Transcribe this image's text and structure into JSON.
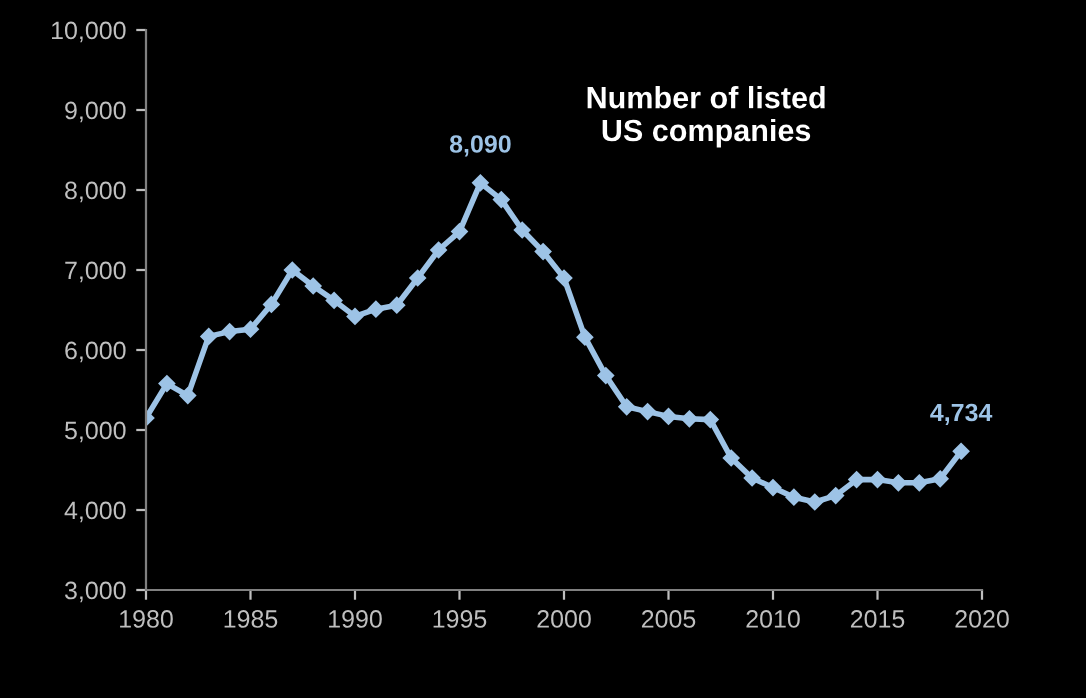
{
  "chart_data": {
    "type": "line",
    "title": "Number of listed\nUS companies",
    "x": [
      1980,
      1981,
      1982,
      1983,
      1984,
      1985,
      1986,
      1987,
      1988,
      1989,
      1990,
      1991,
      1992,
      1993,
      1994,
      1995,
      1996,
      1997,
      1998,
      1999,
      2000,
      2001,
      2002,
      2003,
      2004,
      2005,
      2006,
      2007,
      2008,
      2009,
      2010,
      2011,
      2012,
      2013,
      2014,
      2015,
      2016,
      2017,
      2018,
      2019
    ],
    "series": [
      {
        "color": "#9dc3e6",
        "values": [
          5150,
          5580,
          5430,
          6170,
          6230,
          6260,
          6570,
          7000,
          6800,
          6620,
          6420,
          6510,
          6560,
          6900,
          7250,
          7480,
          8090,
          7880,
          7500,
          7230,
          6900,
          6160,
          5680,
          5290,
          5230,
          5170,
          5140,
          5130,
          4650,
          4400,
          4280,
          4160,
          4100,
          4180,
          4380,
          4380,
          4340,
          4340,
          4390,
          4734
        ],
        "value_labels": [
          null,
          null,
          null,
          null,
          null,
          null,
          null,
          null,
          null,
          null,
          null,
          null,
          null,
          null,
          null,
          null,
          "8,090",
          null,
          null,
          null,
          null,
          null,
          null,
          null,
          null,
          null,
          null,
          null,
          null,
          null,
          null,
          null,
          null,
          null,
          null,
          null,
          null,
          null,
          null,
          "4,734"
        ]
      }
    ],
    "xlim": [
      1980,
      2020
    ],
    "xticks": [
      1980,
      1985,
      1990,
      1995,
      2000,
      2005,
      2010,
      2015,
      2020
    ],
    "ylim": [
      3000,
      10000
    ],
    "yticks": [
      {
        "value": 3000,
        "label": "3,000"
      },
      {
        "value": 4000,
        "label": "4,000"
      },
      {
        "value": 5000,
        "label": "5,000"
      },
      {
        "value": 6000,
        "label": "6,000"
      },
      {
        "value": 7000,
        "label": "7,000"
      },
      {
        "value": 8000,
        "label": "8,000"
      },
      {
        "value": 9000,
        "label": "9,000"
      },
      {
        "value": 10000,
        "label": "10,000"
      }
    ],
    "marker": "diamond",
    "grid": false,
    "legend": false
  }
}
